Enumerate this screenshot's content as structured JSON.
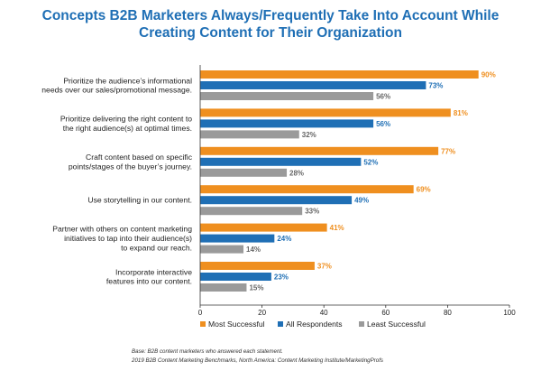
{
  "title": {
    "line1": "Concepts B2B Marketers Always/Frequently Take Into Account While",
    "line2": "Creating Content for Their Organization"
  },
  "chart_data": {
    "type": "bar",
    "orientation": "horizontal",
    "categories": [
      [
        "Prioritize the audience’s informational",
        "needs over our sales/promotional message."
      ],
      [
        "Prioritize delivering the right content to",
        "the right audience(s) at optimal times."
      ],
      [
        "Craft content based on specific",
        "points/stages of the buyer’s journey."
      ],
      [
        "Use storytelling in our content."
      ],
      [
        "Partner with others on content marketing",
        "initiatives to tap into their audience(s)",
        "to expand our reach."
      ],
      [
        "Incorporate interactive",
        "features into our content."
      ]
    ],
    "series": [
      {
        "name": "Most Successful",
        "color": "#ef8f1f",
        "values": [
          90,
          81,
          77,
          69,
          41,
          37
        ]
      },
      {
        "name": "All Respondents",
        "color": "#1f6fb5",
        "values": [
          73,
          56,
          52,
          49,
          24,
          23
        ]
      },
      {
        "name": "Least Successful",
        "color": "#9a9a9a",
        "values": [
          56,
          32,
          28,
          33,
          14,
          15
        ]
      }
    ],
    "value_suffix": "%",
    "xlim": [
      0,
      100
    ],
    "xticks": [
      0,
      20,
      40,
      60,
      80,
      100
    ],
    "grid": false,
    "legend_position": "bottom"
  },
  "footnotes": {
    "base": "Base: B2B content marketers who answered each statement.",
    "source": "2019 B2B Content Marketing Benchmarks, North America: Content Marketing Institute/MarketingProfs"
  }
}
